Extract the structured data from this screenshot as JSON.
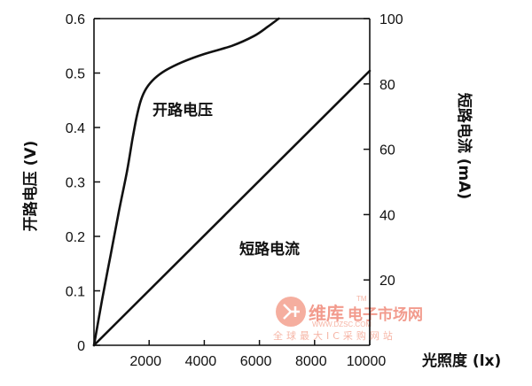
{
  "chart_data": {
    "type": "line",
    "x": {
      "label": "光照度 (lx)",
      "range": [
        0,
        10000
      ],
      "ticks": [
        2000,
        4000,
        6000,
        8000,
        10000
      ]
    },
    "y_left": {
      "label": "开路电压 (V)",
      "range": [
        0,
        0.6
      ],
      "ticks": [
        "0",
        "0.1",
        "0.2",
        "0.3",
        "0.4",
        "0.5",
        "0.6"
      ],
      "tick_values": [
        0,
        0.1,
        0.2,
        0.3,
        0.4,
        0.5,
        0.6
      ]
    },
    "y_right": {
      "label": "短路电流 (mA)",
      "range": [
        0,
        100
      ],
      "ticks": [
        20,
        40,
        60,
        80,
        100
      ]
    },
    "series": [
      {
        "name": "开路电压",
        "axis": "left",
        "x": [
          0,
          300,
          600,
          900,
          1200,
          1400,
          1550,
          1700,
          1900,
          2200,
          2600,
          3200,
          4000,
          5000,
          5800,
          6300,
          6700
        ],
        "y": [
          0,
          0.085,
          0.165,
          0.245,
          0.32,
          0.38,
          0.42,
          0.45,
          0.472,
          0.49,
          0.505,
          0.52,
          0.535,
          0.55,
          0.568,
          0.585,
          0.6
        ]
      },
      {
        "name": "短路电流",
        "axis": "right",
        "x": [
          0,
          10000
        ],
        "y": [
          0,
          84
        ]
      }
    ],
    "annotations": [
      {
        "text": "开路电压",
        "series": 0
      },
      {
        "text": "短路电流",
        "series": 1
      }
    ],
    "grid": false,
    "legend": "none"
  },
  "watermark": {
    "brand": "维库",
    "brand_rest": "电子市场网",
    "tm": "TM",
    "url": "WWW.DZSC.COM",
    "tagline": "全球最大IC采购网站"
  }
}
